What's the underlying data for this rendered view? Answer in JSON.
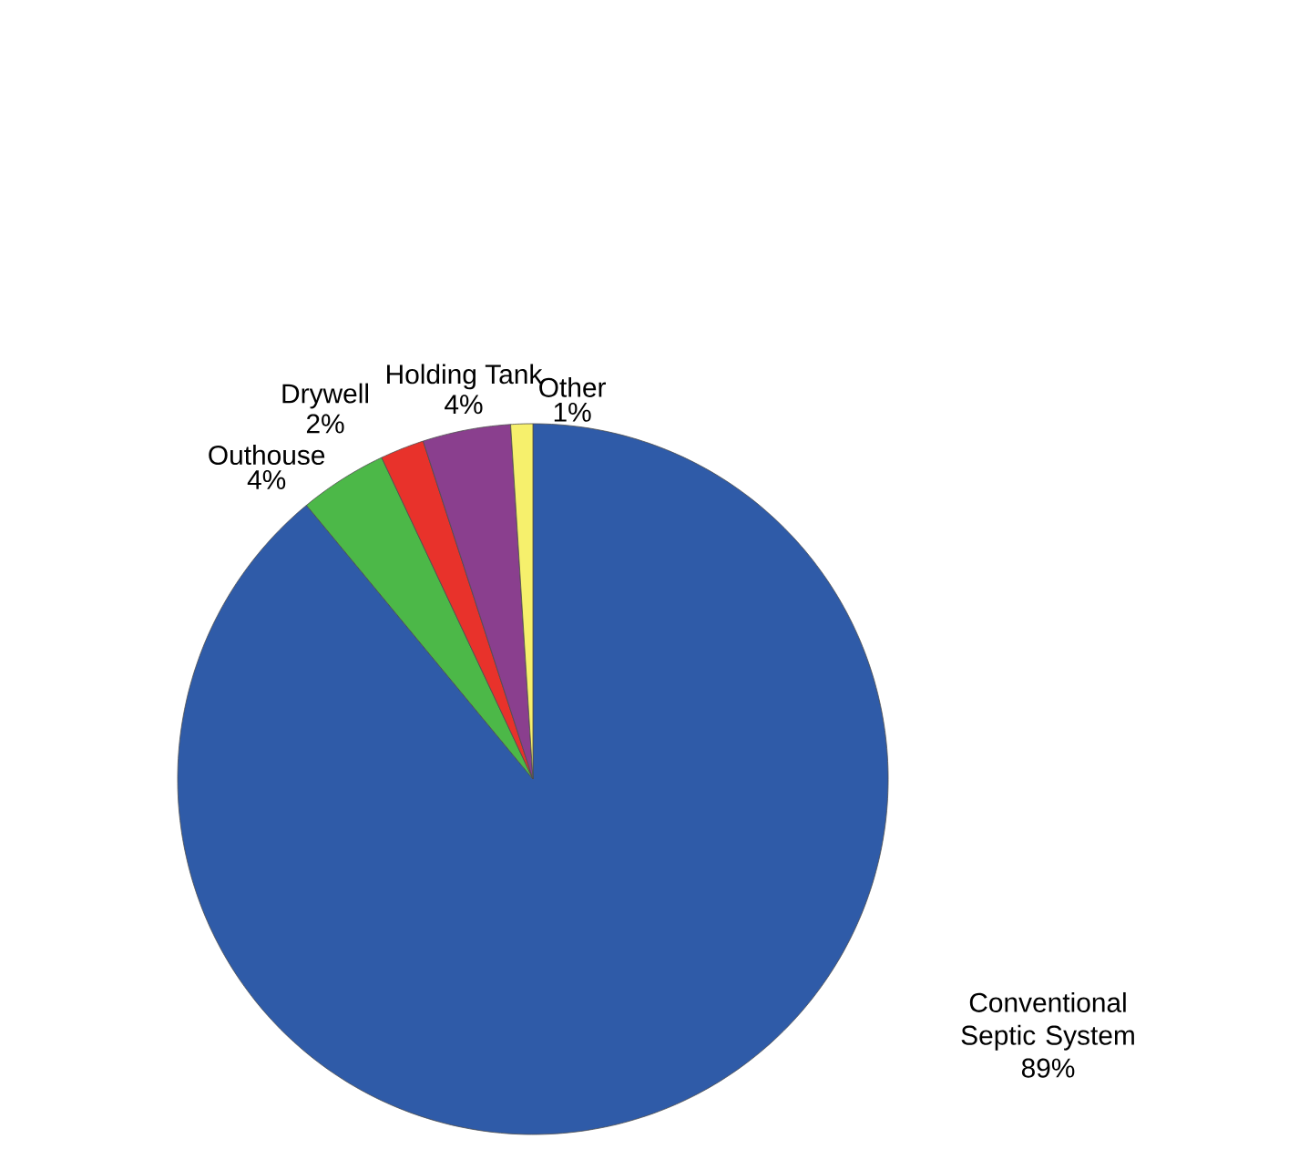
{
  "chart_data": {
    "type": "pie",
    "categories": [
      "Conventional Septic System",
      "Outhouse",
      "Drywell",
      "Holding Tank",
      "Other"
    ],
    "values": [
      89,
      4,
      2,
      4,
      1
    ],
    "value_labels": [
      "89%",
      "4%",
      "2%",
      "4%",
      "1%"
    ],
    "colors": [
      "#2f5ba8",
      "#4cb848",
      "#e8322b",
      "#8a3f8e",
      "#f6f06c"
    ]
  }
}
